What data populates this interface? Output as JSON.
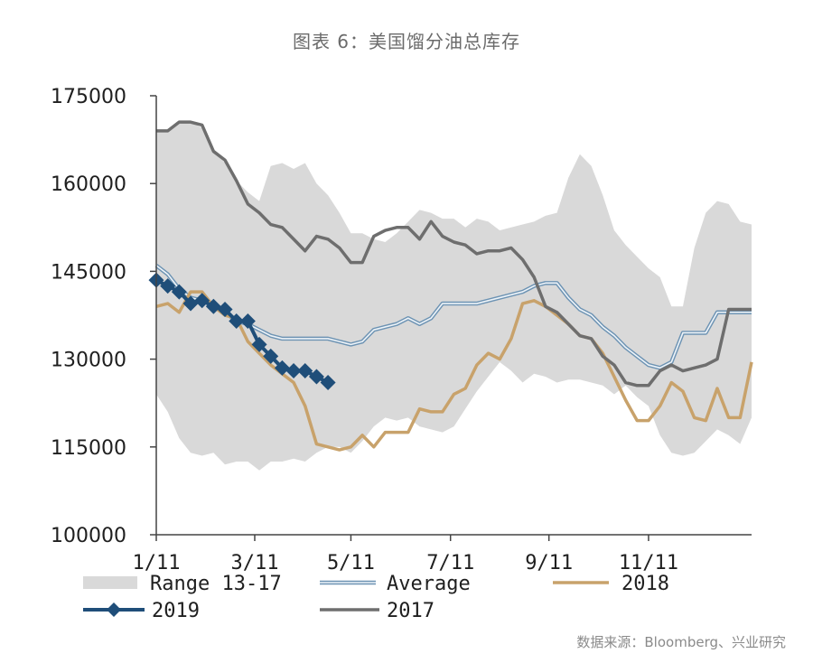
{
  "title": "图表 6：美国馏分油总库存",
  "source": "数据来源：Bloomberg、兴业研究",
  "chart_data": {
    "type": "line",
    "title": "图表 6：美国馏分油总库存",
    "xlabel": "",
    "ylabel": "",
    "xlim": [
      0,
      52
    ],
    "ylim": [
      100000,
      175000
    ],
    "yticks": [
      100000,
      115000,
      130000,
      145000,
      160000,
      175000
    ],
    "ytick_labels": [
      "100000",
      "115000",
      "130000",
      "145000",
      "160000",
      "175000"
    ],
    "xticks": [
      0,
      8.6,
      17,
      25.7,
      34.3,
      43
    ],
    "xtick_labels": [
      "1/11",
      "3/11",
      "5/11",
      "7/11",
      "9/11",
      "11/11"
    ],
    "colors": {
      "range": "#d9d9d9",
      "average": "#8fb3cc",
      "y2018": "#c8a26b",
      "y2019": "#1f4e79",
      "y2017": "#6e6e6e"
    },
    "range": {
      "name": "Range 13-17",
      "x": [
        0,
        1,
        2,
        3,
        4,
        5,
        6,
        7,
        8,
        9,
        10,
        11,
        12,
        13,
        14,
        15,
        16,
        17,
        18,
        19,
        20,
        21,
        22,
        23,
        24,
        25,
        26,
        27,
        28,
        29,
        30,
        31,
        32,
        33,
        34,
        35,
        36,
        37,
        38,
        39,
        40,
        41,
        42,
        43,
        44,
        45,
        46,
        47,
        48,
        49,
        50,
        51,
        52
      ],
      "high": [
        169000,
        169000,
        170500,
        170500,
        169500,
        165500,
        163500,
        160500,
        158500,
        157000,
        163000,
        163500,
        162500,
        163500,
        160000,
        158000,
        155000,
        151500,
        151500,
        150500,
        150000,
        151500,
        153500,
        155500,
        155000,
        154000,
        154000,
        152500,
        154000,
        153500,
        152000,
        152500,
        153000,
        153500,
        154500,
        155000,
        161000,
        165000,
        163000,
        158000,
        152000,
        149500,
        147500,
        145500,
        144000,
        139000,
        139000,
        149000,
        155000,
        157000,
        156500,
        153500,
        153000
      ],
      "low": [
        124000,
        121000,
        116500,
        114000,
        113500,
        114000,
        112000,
        112500,
        112500,
        111000,
        112500,
        112500,
        113000,
        112500,
        114000,
        115000,
        115000,
        114000,
        116000,
        118500,
        120000,
        119500,
        120000,
        118500,
        118000,
        117500,
        118500,
        121500,
        124500,
        127000,
        129500,
        128000,
        126000,
        127500,
        127000,
        126000,
        126500,
        126500,
        126000,
        125500,
        124000,
        125500,
        123500,
        122000,
        117000,
        114000,
        113500,
        114000,
        116000,
        118000,
        117000,
        115500,
        120000
      ]
    },
    "series": [
      {
        "name": "Average",
        "color": "#8fb3cc",
        "x": [
          0,
          1,
          2,
          3,
          4,
          5,
          6,
          7,
          8,
          9,
          10,
          11,
          12,
          13,
          14,
          15,
          16,
          17,
          18,
          19,
          20,
          21,
          22,
          23,
          24,
          25,
          26,
          27,
          28,
          29,
          30,
          31,
          32,
          33,
          34,
          35,
          36,
          37,
          38,
          39,
          40,
          41,
          42,
          43,
          44,
          45,
          46,
          47,
          48,
          49,
          50,
          51,
          52
        ],
        "values": [
          146000,
          144500,
          142000,
          140500,
          140000,
          139500,
          138000,
          136500,
          136000,
          135000,
          134000,
          133500,
          133500,
          133500,
          133500,
          133500,
          133000,
          132500,
          133000,
          135000,
          135500,
          136000,
          137000,
          136000,
          137000,
          139500,
          139500,
          139500,
          139500,
          140000,
          140500,
          141000,
          141500,
          142500,
          143000,
          143000,
          140500,
          138500,
          137500,
          135500,
          134000,
          132000,
          130500,
          129000,
          128500,
          129500,
          134500,
          134500,
          134500,
          138000,
          138000,
          138000,
          138000
        ]
      },
      {
        "name": "2018",
        "color": "#c8a26b",
        "x": [
          0,
          1,
          2,
          3,
          4,
          5,
          6,
          7,
          8,
          9,
          10,
          11,
          12,
          13,
          14,
          15,
          16,
          17,
          18,
          19,
          20,
          21,
          22,
          23,
          24,
          25,
          26,
          27,
          28,
          29,
          30,
          31,
          32,
          33,
          34,
          35,
          36,
          37,
          38,
          39,
          40,
          41,
          42,
          43,
          44,
          45,
          46,
          47,
          48,
          49,
          50,
          51,
          52
        ],
        "values": [
          139000,
          139500,
          138000,
          141500,
          141500,
          139000,
          137500,
          137000,
          133000,
          131000,
          129000,
          127500,
          126000,
          122000,
          115500,
          115000,
          114500,
          115000,
          117000,
          115000,
          117500,
          117500,
          117500,
          121500,
          121000,
          121000,
          124000,
          125000,
          129000,
          131000,
          130000,
          133500,
          139500,
          140000,
          139000,
          137500,
          136000,
          134000,
          133500,
          131000,
          127000,
          123000,
          119500,
          119500,
          122000,
          126000,
          124500,
          120000,
          119500,
          125000,
          120000,
          120000,
          129500
        ]
      },
      {
        "name": "2019",
        "color": "#1f4e79",
        "x": [
          0,
          1,
          2,
          3,
          4,
          5,
          6,
          7,
          8,
          9,
          10,
          11,
          12,
          13,
          14,
          15
        ],
        "values": [
          143500,
          142500,
          141500,
          139500,
          140000,
          139000,
          138500,
          136500,
          136500,
          132500,
          130500,
          128500,
          128000,
          128000,
          127000,
          126000
        ]
      },
      {
        "name": "2017",
        "color": "#6e6e6e",
        "x": [
          0,
          1,
          2,
          3,
          4,
          5,
          6,
          7,
          8,
          9,
          10,
          11,
          12,
          13,
          14,
          15,
          16,
          17,
          18,
          19,
          20,
          21,
          22,
          23,
          24,
          25,
          26,
          27,
          28,
          29,
          30,
          31,
          32,
          33,
          34,
          35,
          36,
          37,
          38,
          39,
          40,
          41,
          42,
          43,
          44,
          45,
          46,
          47,
          48,
          49,
          50,
          51,
          52
        ],
        "values": [
          169000,
          169000,
          170500,
          170500,
          170000,
          165500,
          164000,
          160500,
          156500,
          155000,
          153000,
          152500,
          150500,
          148500,
          151000,
          150500,
          149000,
          146500,
          146500,
          151000,
          152000,
          152500,
          152500,
          150500,
          153500,
          151000,
          150000,
          149500,
          148000,
          148500,
          148500,
          149000,
          147000,
          144000,
          139000,
          138000,
          136000,
          134000,
          133500,
          130500,
          129000,
          126000,
          125500,
          125500,
          128000,
          129000,
          128000,
          128500,
          129000,
          130000,
          138500,
          138500,
          138500
        ]
      }
    ],
    "legend": [
      {
        "key": "range",
        "label": "Range 13-17",
        "style": "band"
      },
      {
        "key": "average",
        "label": "Average",
        "style": "double-line"
      },
      {
        "key": "y2018",
        "label": "2018",
        "style": "line"
      },
      {
        "key": "y2019",
        "label": "2019",
        "style": "line-marker"
      },
      {
        "key": "y2017",
        "label": "2017",
        "style": "line"
      }
    ],
    "legend_position": "bottom",
    "grid": false
  }
}
